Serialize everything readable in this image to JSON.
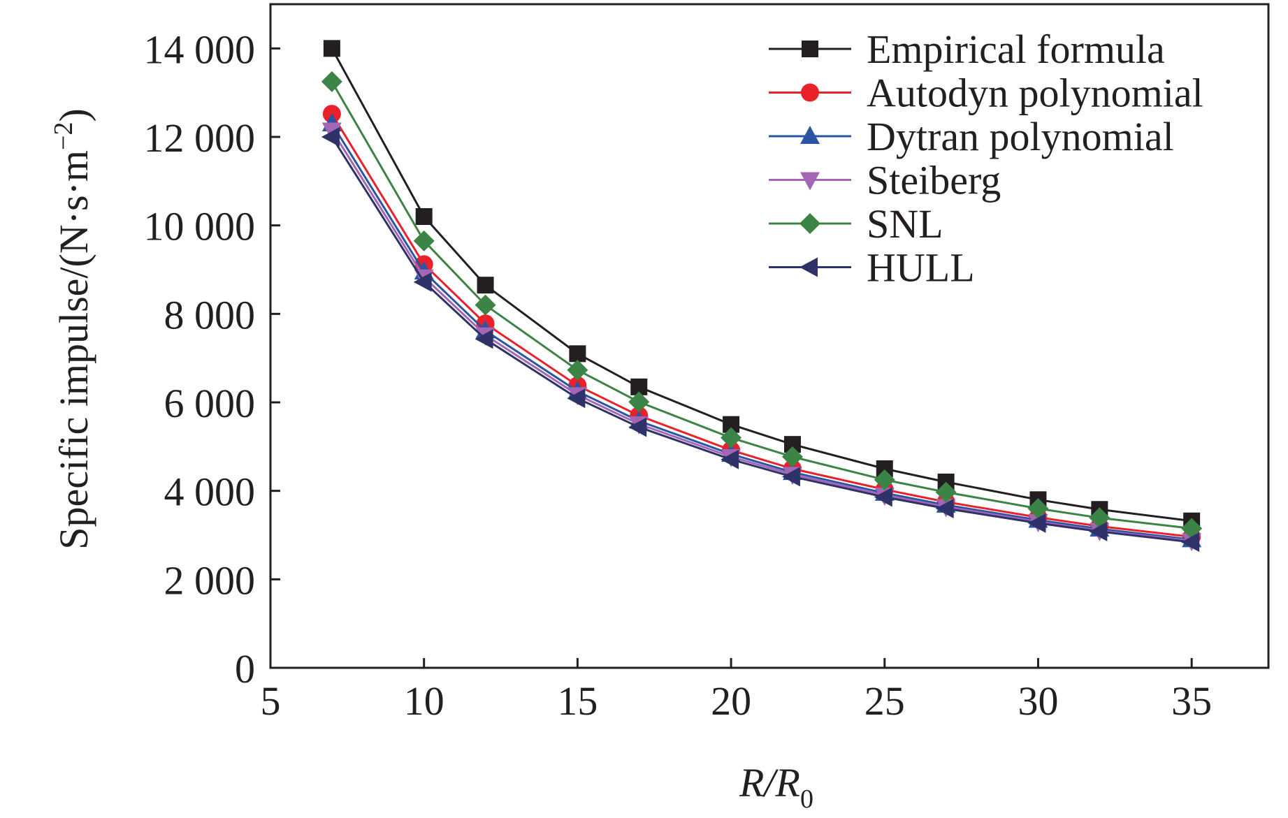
{
  "chart_data": {
    "type": "line",
    "title": "",
    "xlabel": {
      "main": "R/R",
      "subscript": "0"
    },
    "ylabel": {
      "main": "Specific impulse/(N·s·m",
      "superscript": "−2",
      "close": ")"
    },
    "xlim": [
      5,
      37.5
    ],
    "ylim": [
      0,
      15000
    ],
    "xticks": [
      5,
      10,
      15,
      20,
      25,
      30,
      35
    ],
    "yticks": [
      0,
      2000,
      4000,
      6000,
      8000,
      10000,
      12000,
      14000
    ],
    "xtick_labels": [
      "5",
      "10",
      "15",
      "20",
      "25",
      "30",
      "35"
    ],
    "ytick_labels": [
      "0",
      "2 000",
      "4 000",
      "6 000",
      "8 000",
      "10 000",
      "12 000",
      "14 000"
    ],
    "grid": false,
    "legend_position": "top-right",
    "x": [
      7,
      10,
      12,
      15,
      17,
      20,
      22,
      25,
      27,
      30,
      32,
      35
    ],
    "series": [
      {
        "name": "Empirical formula",
        "color": "#231f20",
        "marker": "square",
        "values": [
          14000,
          10200,
          8650,
          7100,
          6350,
          5500,
          5050,
          4500,
          4200,
          3800,
          3580,
          3320
        ]
      },
      {
        "name": "Autodyn polynomial",
        "color": "#e8212a",
        "marker": "circle",
        "values": [
          12520,
          9120,
          7780,
          6380,
          5700,
          4920,
          4500,
          4030,
          3750,
          3400,
          3200,
          2960
        ]
      },
      {
        "name": "Dytran polynomial",
        "color": "#2a55a3",
        "marker": "triangle-up",
        "values": [
          12300,
          8950,
          7620,
          6250,
          5580,
          4830,
          4420,
          3950,
          3680,
          3340,
          3140,
          2900
        ]
      },
      {
        "name": "Steiberg",
        "color": "#a266b4",
        "marker": "triangle-down",
        "values": [
          12150,
          8830,
          7520,
          6170,
          5510,
          4770,
          4370,
          3900,
          3640,
          3300,
          3100,
          2870
        ]
      },
      {
        "name": "SNL",
        "color": "#3c8346",
        "marker": "diamond",
        "values": [
          13250,
          9650,
          8200,
          6730,
          6010,
          5200,
          4770,
          4250,
          3970,
          3600,
          3390,
          3150
        ]
      },
      {
        "name": "HULL",
        "color": "#2e3268",
        "marker": "triangle-left",
        "values": [
          12000,
          8720,
          7430,
          6090,
          5440,
          4710,
          4320,
          3860,
          3600,
          3270,
          3080,
          2840
        ]
      }
    ]
  }
}
